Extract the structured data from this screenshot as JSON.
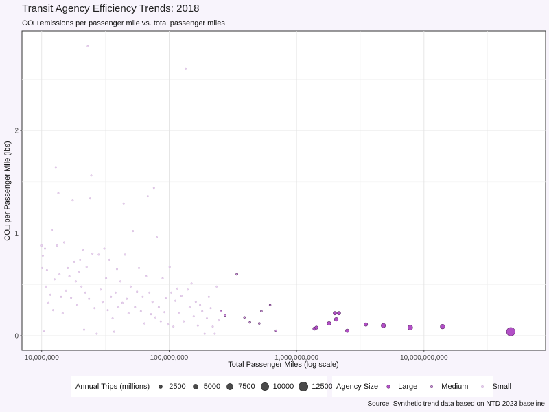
{
  "chart_data": {
    "type": "scatter",
    "title": "Transit Agency Efficiency Trends: 2018",
    "subtitle": "CO□ emissions per passenger mile vs. total passenger miles",
    "xlabel": "Total Passenger Miles (log scale)",
    "ylabel": "CO□ per Passenger Mile (lbs)",
    "x_scale": "log",
    "xlim": [
      7000000,
      90000000000
    ],
    "ylim": [
      -0.14,
      2.97
    ],
    "x_ticks": [
      10000000,
      100000000,
      1000000000,
      10000000000
    ],
    "x_tick_labels": [
      "10,000,000",
      "100,000,000",
      "1,000,000,000",
      "10,000,000,000"
    ],
    "y_ticks": [
      0,
      1,
      2
    ],
    "y_tick_labels": [
      "0",
      "1",
      "2"
    ],
    "grid": true,
    "colors": {
      "Large": "#b24fc6",
      "Medium": "#d39ae0",
      "Small": "#e8d2ee",
      "point_stroke": "#5a2a66"
    },
    "size_legend": {
      "title": "Annual Trips (millions)",
      "values": [
        2500,
        5000,
        7500,
        10000,
        12500
      ],
      "labels": [
        "2500",
        "5000",
        "7500",
        "10000",
        "12500"
      ]
    },
    "color_legend": {
      "title": "Agency Size",
      "entries": [
        "Large",
        "Medium",
        "Small"
      ]
    },
    "series": [
      {
        "name": "Large",
        "points": [
          {
            "x": 1380000000,
            "y": 0.07,
            "trips": 500
          },
          {
            "x": 1430000000,
            "y": 0.08,
            "trips": 500
          },
          {
            "x": 1800000000,
            "y": 0.12,
            "trips": 700
          },
          {
            "x": 2000000000,
            "y": 0.22,
            "trips": 600
          },
          {
            "x": 2050000000,
            "y": 0.16,
            "trips": 700
          },
          {
            "x": 2150000000,
            "y": 0.22,
            "trips": 600
          },
          {
            "x": 2500000000,
            "y": 0.05,
            "trips": 600
          },
          {
            "x": 3500000000,
            "y": 0.11,
            "trips": 600
          },
          {
            "x": 4800000000,
            "y": 0.1,
            "trips": 900
          },
          {
            "x": 7800000000,
            "y": 0.08,
            "trips": 1100
          },
          {
            "x": 14000000000,
            "y": 0.09,
            "trips": 1000
          },
          {
            "x": 48000000000,
            "y": 0.04,
            "trips": 3400
          }
        ]
      },
      {
        "name": "Medium",
        "points": [
          {
            "x": 255000000,
            "y": 0.24,
            "trips": 150
          },
          {
            "x": 275000000,
            "y": 0.2,
            "trips": 150
          },
          {
            "x": 340000000,
            "y": 0.6,
            "trips": 200
          },
          {
            "x": 390000000,
            "y": 0.18,
            "trips": 150
          },
          {
            "x": 430000000,
            "y": 0.13,
            "trips": 150
          },
          {
            "x": 510000000,
            "y": 0.12,
            "trips": 150
          },
          {
            "x": 530000000,
            "y": 0.24,
            "trips": 150
          },
          {
            "x": 620000000,
            "y": 0.3,
            "trips": 150
          },
          {
            "x": 690000000,
            "y": 0.05,
            "trips": 150
          }
        ]
      },
      {
        "name": "Small",
        "points": [
          {
            "x": 10000000,
            "y": 0.88
          },
          {
            "x": 10100000,
            "y": 0.66
          },
          {
            "x": 10200000,
            "y": 0.78
          },
          {
            "x": 10400000,
            "y": 0.05
          },
          {
            "x": 10600000,
            "y": 0.85
          },
          {
            "x": 10800000,
            "y": 0.48
          },
          {
            "x": 11000000,
            "y": 0.64
          },
          {
            "x": 11300000,
            "y": 0.32
          },
          {
            "x": 11700000,
            "y": 0.4
          },
          {
            "x": 12000000,
            "y": 1.03
          },
          {
            "x": 12300000,
            "y": 0.25
          },
          {
            "x": 12600000,
            "y": 0.55
          },
          {
            "x": 12900000,
            "y": 1.64
          },
          {
            "x": 13200000,
            "y": 0.88
          },
          {
            "x": 13500000,
            "y": 1.39
          },
          {
            "x": 13800000,
            "y": 0.6
          },
          {
            "x": 14200000,
            "y": 0.38
          },
          {
            "x": 14600000,
            "y": 0.22
          },
          {
            "x": 15000000,
            "y": 0.91
          },
          {
            "x": 15500000,
            "y": 0.44
          },
          {
            "x": 16000000,
            "y": 0.66
          },
          {
            "x": 16500000,
            "y": 0.58
          },
          {
            "x": 17000000,
            "y": 0.37
          },
          {
            "x": 17500000,
            "y": 1.32
          },
          {
            "x": 18000000,
            "y": 0.72
          },
          {
            "x": 18500000,
            "y": 0.53
          },
          {
            "x": 19000000,
            "y": 0.3
          },
          {
            "x": 19500000,
            "y": 0.62
          },
          {
            "x": 20000000,
            "y": 0.74
          },
          {
            "x": 20500000,
            "y": 0.48
          },
          {
            "x": 21000000,
            "y": 0.84
          },
          {
            "x": 21500000,
            "y": 0.06
          },
          {
            "x": 22000000,
            "y": 0.42
          },
          {
            "x": 22500000,
            "y": 0.67
          },
          {
            "x": 23000000,
            "y": 2.82
          },
          {
            "x": 23500000,
            "y": 0.36
          },
          {
            "x": 24000000,
            "y": 1.34
          },
          {
            "x": 24500000,
            "y": 1.56
          },
          {
            "x": 25000000,
            "y": 0.8
          },
          {
            "x": 26000000,
            "y": 0.27
          },
          {
            "x": 27000000,
            "y": 0.02
          },
          {
            "x": 28000000,
            "y": 0.79
          },
          {
            "x": 29000000,
            "y": 0.45
          },
          {
            "x": 30000000,
            "y": 0.33
          },
          {
            "x": 31000000,
            "y": 0.85
          },
          {
            "x": 32000000,
            "y": 0.56
          },
          {
            "x": 33000000,
            "y": 0.25
          },
          {
            "x": 34000000,
            "y": 0.74
          },
          {
            "x": 35000000,
            "y": 0.38
          },
          {
            "x": 36000000,
            "y": 0.17
          },
          {
            "x": 37000000,
            "y": 0.04
          },
          {
            "x": 38000000,
            "y": 0.42
          },
          {
            "x": 39000000,
            "y": 0.65
          },
          {
            "x": 40000000,
            "y": 0.28
          },
          {
            "x": 41500000,
            "y": 0.53
          },
          {
            "x": 43000000,
            "y": 0.32
          },
          {
            "x": 44000000,
            "y": 1.29
          },
          {
            "x": 45000000,
            "y": 0.79
          },
          {
            "x": 46500000,
            "y": 0.36
          },
          {
            "x": 48000000,
            "y": 0.22
          },
          {
            "x": 50000000,
            "y": 0.48
          },
          {
            "x": 52000000,
            "y": 1.02
          },
          {
            "x": 54000000,
            "y": 0.28
          },
          {
            "x": 56000000,
            "y": 0.43
          },
          {
            "x": 58000000,
            "y": 0.66
          },
          {
            "x": 60000000,
            "y": 0.24
          },
          {
            "x": 62000000,
            "y": 0.38
          },
          {
            "x": 64000000,
            "y": 0.12
          },
          {
            "x": 66000000,
            "y": 0.58
          },
          {
            "x": 68000000,
            "y": 1.36
          },
          {
            "x": 70000000,
            "y": 0.42
          },
          {
            "x": 72000000,
            "y": 0.21
          },
          {
            "x": 74000000,
            "y": 0.33
          },
          {
            "x": 76000000,
            "y": 1.44
          },
          {
            "x": 78000000,
            "y": 0.18
          },
          {
            "x": 80000000,
            "y": 0.96
          },
          {
            "x": 83000000,
            "y": 0.28
          },
          {
            "x": 86000000,
            "y": 0.14
          },
          {
            "x": 89000000,
            "y": 0.56
          },
          {
            "x": 92000000,
            "y": 0.23
          },
          {
            "x": 95000000,
            "y": 0.37
          },
          {
            "x": 98000000,
            "y": 0.11
          },
          {
            "x": 101000000,
            "y": 0.67
          },
          {
            "x": 104000000,
            "y": 0.42
          },
          {
            "x": 108000000,
            "y": 0.09
          },
          {
            "x": 112000000,
            "y": 0.34
          },
          {
            "x": 116000000,
            "y": 0.46
          },
          {
            "x": 120000000,
            "y": 0.22
          },
          {
            "x": 125000000,
            "y": 0.39
          },
          {
            "x": 130000000,
            "y": 0.14
          },
          {
            "x": 135000000,
            "y": 2.6
          },
          {
            "x": 140000000,
            "y": 0.45
          },
          {
            "x": 145000000,
            "y": 0.28
          },
          {
            "x": 150000000,
            "y": 0.51
          },
          {
            "x": 156000000,
            "y": 0.19
          },
          {
            "x": 162000000,
            "y": 0.33
          },
          {
            "x": 168000000,
            "y": 0.1
          },
          {
            "x": 175000000,
            "y": 0.3
          },
          {
            "x": 182000000,
            "y": 0.24
          },
          {
            "x": 190000000,
            "y": 0.02
          },
          {
            "x": 198000000,
            "y": 0.17
          },
          {
            "x": 205000000,
            "y": 0.38
          },
          {
            "x": 212000000,
            "y": 0.27
          },
          {
            "x": 220000000,
            "y": 0.09
          },
          {
            "x": 228000000,
            "y": 0.02
          },
          {
            "x": 236000000,
            "y": 0.48
          },
          {
            "x": 245000000,
            "y": 0.15
          }
        ]
      }
    ]
  },
  "source": "Source: Synthetic trend data based on NTD 2023 baseline"
}
